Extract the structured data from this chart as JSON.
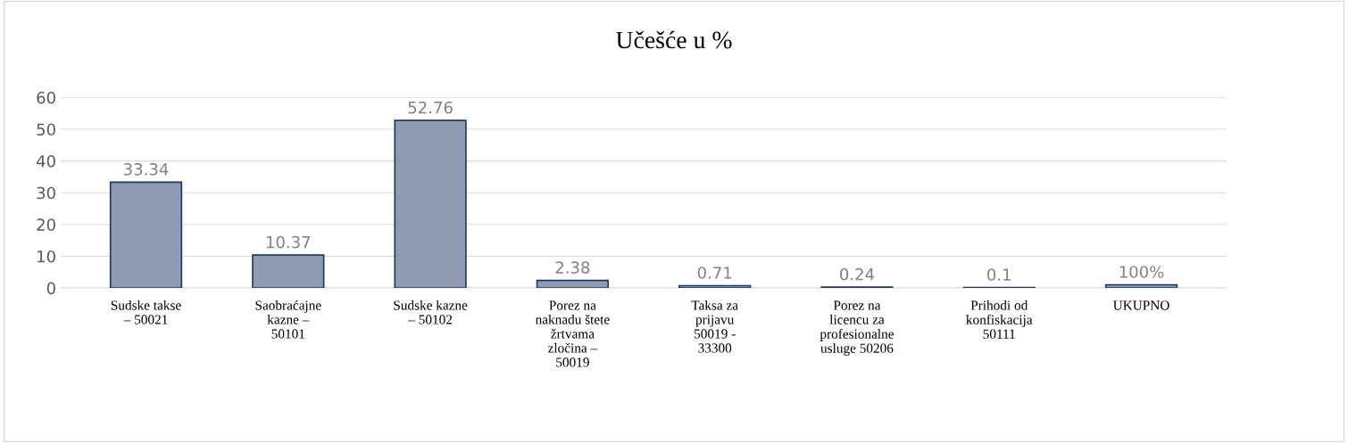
{
  "chart_data": {
    "type": "bar",
    "title": "Učešće u %",
    "categories": [
      "Sudske takse\n– 50021",
      "Saobraćajne\nkazne –\n50101",
      "Sudske kazne\n– 50102",
      "Porez na\nnaknadu štete\nžrtvama\nzločina –\n50019",
      "Taksa za\nprijavu\n50019 -\n33300",
      "Porez na\nlicencu za\nprofesionalne\nusluge 50206",
      "Prihodi od\nkonfiskacija\n50111",
      "UKUPNO"
    ],
    "values": [
      33.34,
      10.37,
      52.76,
      2.38,
      0.71,
      0.24,
      0.1,
      1
    ],
    "value_labels": [
      "33.34",
      "10.37",
      "52.76",
      "2.38",
      "0.71",
      "0.24",
      "0.1",
      "100%"
    ],
    "color": "#8f9ab3",
    "ylim": [
      0,
      60
    ],
    "yticks": [
      0,
      10,
      20,
      30,
      40,
      50,
      60
    ],
    "grid": "y"
  }
}
